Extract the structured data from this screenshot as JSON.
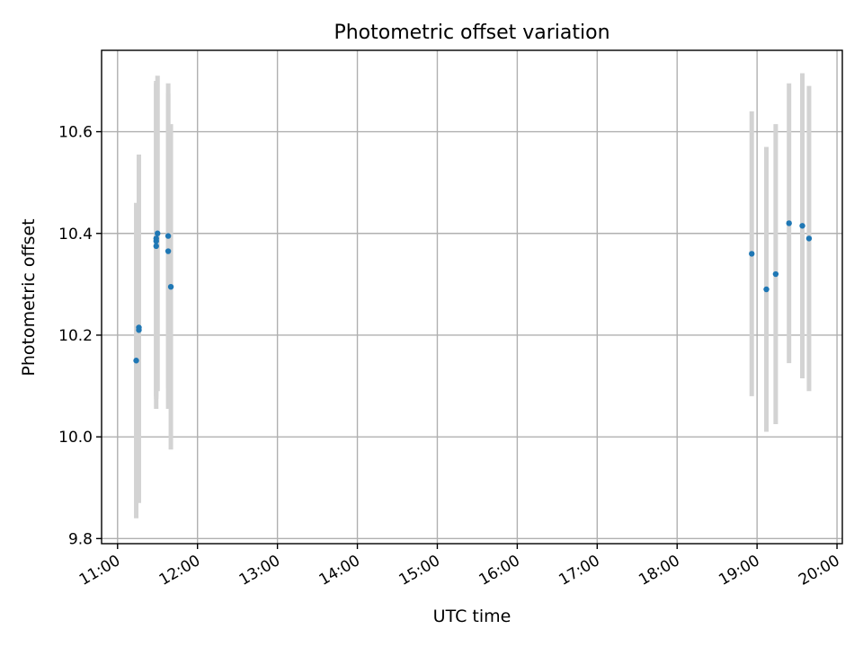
{
  "chart_data": {
    "type": "scatter",
    "title": "Photometric offset variation",
    "xlabel": "UTC time",
    "ylabel": "Photometric offset",
    "x_ticks": [
      "11:00",
      "12:00",
      "13:00",
      "14:00",
      "15:00",
      "16:00",
      "17:00",
      "18:00",
      "19:00",
      "20:00"
    ],
    "y_ticks": [
      "9.8",
      "10.0",
      "10.2",
      "10.4",
      "10.6"
    ],
    "xlim": [
      "10:48",
      "20:04"
    ],
    "ylim": [
      9.79,
      10.76
    ],
    "grid": true,
    "colors": {
      "points": "#1f77b4",
      "errorbars": "#d3d3d3"
    },
    "series": [
      {
        "points": [
          {
            "x": "11:14",
            "y": 10.15,
            "err": 0.31
          },
          {
            "x": "11:16",
            "y": 10.21,
            "err": 0.34
          },
          {
            "x": "11:16",
            "y": 10.215,
            "err": 0.34
          },
          {
            "x": "11:29",
            "y": 10.385,
            "err": 0.31
          },
          {
            "x": "11:29",
            "y": 10.39,
            "err": 0.31
          },
          {
            "x": "11:29",
            "y": 10.375,
            "err": 0.32
          },
          {
            "x": "11:30",
            "y": 10.4,
            "err": 0.31
          },
          {
            "x": "11:38",
            "y": 10.395,
            "err": 0.3
          },
          {
            "x": "11:38",
            "y": 10.365,
            "err": 0.31
          },
          {
            "x": "11:40",
            "y": 10.295,
            "err": 0.32
          },
          {
            "x": "18:56",
            "y": 10.36,
            "err": 0.28
          },
          {
            "x": "19:07",
            "y": 10.29,
            "err": 0.28
          },
          {
            "x": "19:14",
            "y": 10.32,
            "err": 0.295
          },
          {
            "x": "19:24",
            "y": 10.42,
            "err": 0.275
          },
          {
            "x": "19:34",
            "y": 10.415,
            "err": 0.3
          },
          {
            "x": "19:39",
            "y": 10.39,
            "err": 0.3
          }
        ]
      }
    ]
  }
}
